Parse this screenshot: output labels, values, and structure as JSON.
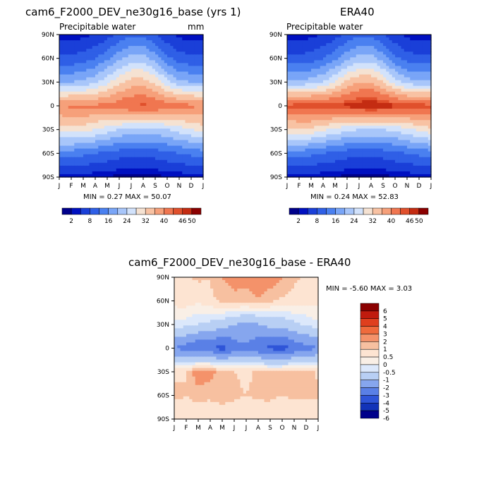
{
  "panels": {
    "left": {
      "title": "cam6_F2000_DEV_ne30g16_base (yrs 1)",
      "subtitle": "Precipitable water",
      "units": "mm",
      "stats": "MIN =    0.27 MAX =   50.07",
      "colorbar_labels": [
        "2",
        "8",
        "16",
        "24",
        "32",
        "40",
        "46",
        "50"
      ]
    },
    "right": {
      "title": "ERA40",
      "subtitle": "Precipitable water",
      "stats": "MIN =    0.24 MAX =   52.83",
      "colorbar_labels": [
        "2",
        "8",
        "16",
        "24",
        "32",
        "40",
        "46",
        "50"
      ]
    },
    "diff": {
      "title": "cam6_F2000_DEV_ne30g16_base  -  ERA40",
      "stats": "MIN =    -5.60 MAX =    3.03",
      "colorbar_labels": [
        "6",
        "5",
        "4",
        "3",
        "2",
        "1",
        "0.5",
        "0",
        "-0.5",
        "-1",
        "-2",
        "-3",
        "-4",
        "-5",
        "-6"
      ]
    }
  },
  "axes": {
    "y_ticks": [
      "90N",
      "60N",
      "30N",
      "0",
      "30S",
      "60S",
      "90S"
    ],
    "x_ticks": [
      "J",
      "F",
      "M",
      "A",
      "M",
      "J",
      "J",
      "A",
      "S",
      "O",
      "N",
      "D",
      "J"
    ]
  },
  "colors": {
    "abs_scale": [
      "#00008b",
      "#0010c0",
      "#1a3fd8",
      "#2f5fe6",
      "#4a80f0",
      "#79a5f7",
      "#a8c6fa",
      "#d2e2fb",
      "#f5e2d2",
      "#f8c2a3",
      "#f6a07a",
      "#f07650",
      "#e0502c",
      "#c42c12",
      "#8b0000"
    ],
    "diff_scale": [
      "#8b0000",
      "#c01b0e",
      "#df3f1e",
      "#ef6a3c",
      "#f4926a",
      "#f7c0a0",
      "#fde4d2",
      "#f9efe6",
      "#dce8fb",
      "#b8cff4",
      "#86a6ee",
      "#5a80e6",
      "#2f55d8",
      "#1233b8",
      "#00008b"
    ]
  },
  "chart_data": [
    {
      "type": "heatmap",
      "title": "cam6_F2000_DEV_ne30g16_base (yrs 1)",
      "subtitle": "Precipitable water",
      "units": "mm",
      "x": [
        "J",
        "F",
        "M",
        "A",
        "M",
        "J",
        "J",
        "A",
        "S",
        "O",
        "N",
        "D",
        "J"
      ],
      "y": [
        "90N",
        "60N",
        "30N",
        "0",
        "30S",
        "60S",
        "90S"
      ],
      "min": 0.27,
      "max": 50.07,
      "levels": [
        2,
        8,
        16,
        24,
        32,
        40,
        46,
        50
      ],
      "values": [
        [
          2,
          2,
          3,
          4,
          6,
          9,
          11,
          11,
          8,
          5,
          3,
          2,
          2
        ],
        [
          9,
          9,
          10,
          12,
          15,
          19,
          22,
          22,
          18,
          13,
          10,
          9,
          9
        ],
        [
          20,
          20,
          21,
          23,
          27,
          31,
          34,
          34,
          31,
          25,
          21,
          20,
          20
        ],
        [
          40,
          41,
          41,
          41,
          41,
          43,
          44,
          45,
          44,
          43,
          42,
          41,
          40
        ],
        [
          30,
          30,
          30,
          28,
          26,
          24,
          23,
          23,
          23,
          24,
          26,
          28,
          30
        ],
        [
          14,
          14,
          13,
          12,
          11,
          10,
          9,
          9,
          10,
          11,
          12,
          13,
          14
        ],
        [
          3,
          3,
          3,
          2,
          2,
          1,
          1,
          1,
          1,
          2,
          2,
          3,
          3
        ]
      ]
    },
    {
      "type": "heatmap",
      "title": "ERA40",
      "subtitle": "Precipitable water",
      "x": [
        "J",
        "F",
        "M",
        "A",
        "M",
        "J",
        "J",
        "A",
        "S",
        "O",
        "N",
        "D",
        "J"
      ],
      "y": [
        "90N",
        "60N",
        "30N",
        "0",
        "30S",
        "60S",
        "90S"
      ],
      "min": 0.24,
      "max": 52.83,
      "levels": [
        2,
        8,
        16,
        24,
        32,
        40,
        46,
        50
      ],
      "values": [
        [
          2,
          2,
          3,
          4,
          6,
          9,
          11,
          11,
          8,
          5,
          3,
          2,
          2
        ],
        [
          9,
          9,
          10,
          12,
          15,
          19,
          22,
          22,
          18,
          13,
          10,
          9,
          9
        ],
        [
          21,
          21,
          22,
          24,
          28,
          33,
          36,
          36,
          32,
          26,
          22,
          21,
          21
        ],
        [
          45,
          46,
          46,
          46,
          46,
          47,
          48,
          49,
          48,
          47,
          46,
          46,
          45
        ],
        [
          31,
          31,
          31,
          29,
          27,
          25,
          24,
          24,
          24,
          25,
          27,
          29,
          31
        ],
        [
          14,
          14,
          13,
          12,
          11,
          10,
          9,
          9,
          10,
          11,
          12,
          13,
          14
        ],
        [
          3,
          3,
          3,
          2,
          2,
          1,
          1,
          1,
          1,
          2,
          2,
          3,
          3
        ]
      ]
    },
    {
      "type": "heatmap",
      "title": "cam6_F2000_DEV_ne30g16_base  -  ERA40",
      "x": [
        "J",
        "F",
        "M",
        "A",
        "M",
        "J",
        "J",
        "A",
        "S",
        "O",
        "N",
        "D",
        "J"
      ],
      "y": [
        "90N",
        "60N",
        "30N",
        "0",
        "30S",
        "60S",
        "90S"
      ],
      "min": -5.6,
      "max": 3.03,
      "levels": [
        -6,
        -5,
        -4,
        -3,
        -2,
        -1,
        -0.5,
        0,
        0.5,
        1,
        2,
        3,
        4,
        5,
        6
      ],
      "values": [
        [
          0.3,
          0.4,
          0.6,
          0.5,
          1,
          1.3,
          1.2,
          1.5,
          1.4,
          1,
          0.6,
          0.4,
          0.3
        ],
        [
          0.2,
          0.3,
          0.1,
          0.4,
          0.6,
          0.8,
          0.7,
          0.9,
          0.6,
          0.4,
          0.3,
          0.2,
          0.2
        ],
        [
          -0.6,
          -0.8,
          -1,
          -1.2,
          -1.5,
          -2,
          -2.2,
          -2.1,
          -1.7,
          -1.6,
          -1.2,
          -0.9,
          -0.6
        ],
        [
          -3,
          -3.5,
          -4,
          -3.8,
          -4.5,
          -3.5,
          -3.2,
          -3.8,
          -4.2,
          -4.5,
          -3.8,
          -3.4,
          -3
        ],
        [
          0.4,
          0.5,
          1.5,
          1.2,
          0.8,
          0.5,
          0.4,
          0.6,
          0.5,
          0.6,
          0.7,
          0.8,
          0.4
        ],
        [
          0.6,
          0.5,
          0.7,
          0.6,
          0.7,
          0.6,
          0.5,
          0.6,
          0.6,
          0.5,
          0.6,
          0.6,
          0.6
        ],
        [
          0.1,
          0.2,
          0.1,
          0.1,
          0.2,
          0.1,
          0.1,
          0.1,
          0.2,
          0.1,
          0.1,
          0.1,
          0.1
        ]
      ]
    }
  ]
}
